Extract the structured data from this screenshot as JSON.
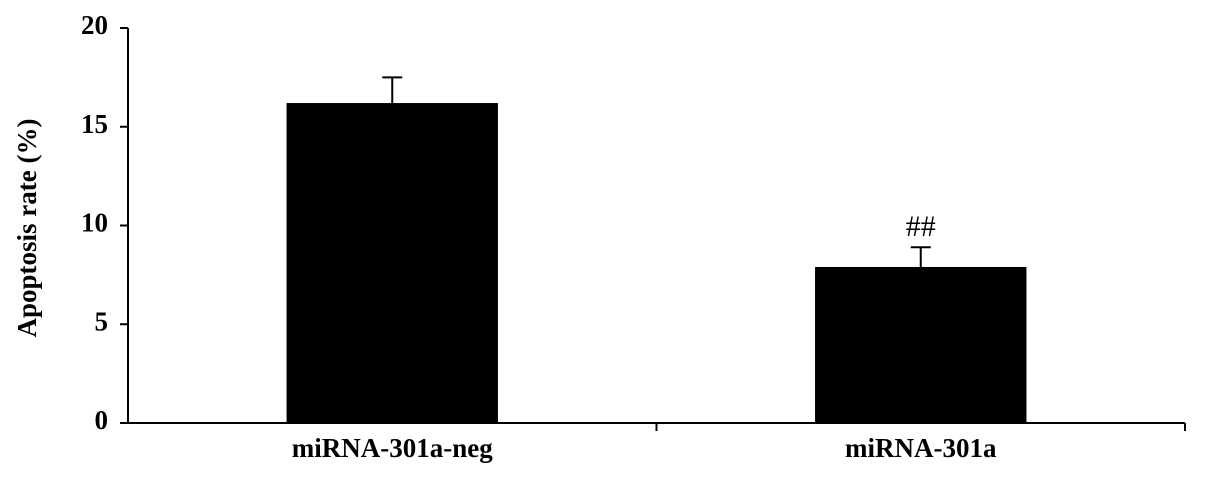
{
  "chart_data": {
    "type": "bar",
    "y_label": "Apoptosis rate (%)",
    "categories": [
      "miRNA-301a-neg",
      "miRNA-301a"
    ],
    "values": [
      16.2,
      7.9
    ],
    "errors": [
      1.3,
      1.0
    ],
    "annotations": [
      null,
      "##"
    ],
    "color": "#000000",
    "ylim": [
      0,
      20
    ],
    "yticks": [
      0,
      5,
      10,
      15,
      20
    ],
    "grid": false
  }
}
